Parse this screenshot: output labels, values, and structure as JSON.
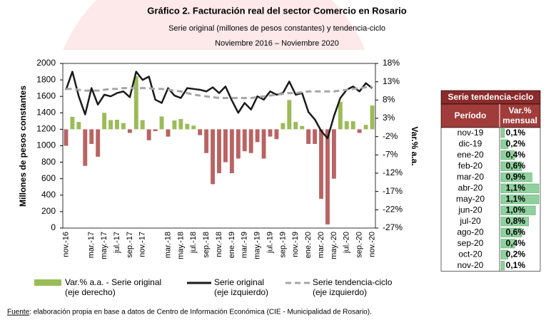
{
  "chart_data": {
    "type": "combo",
    "title": "Gráfico 2. Facturación real del sector Comercio en Rosario",
    "subtitle": "Serie original (millones de pesos constantes) y tendencia-ciclo",
    "subtitle2": "Noviembre 2016 – Noviembre 2020",
    "y_label": "Millones de pesos constantes",
    "y2_label": "Var.% a.a.",
    "categories": [
      "nov.-16",
      null,
      null,
      null,
      "mar.-17",
      null,
      "may.-17",
      null,
      "jul.-17",
      null,
      "sep.-17",
      null,
      "nov.-17",
      null,
      null,
      null,
      "mar.-18",
      null,
      "may.-18",
      null,
      "jul.-18",
      null,
      "sep.-18",
      null,
      "nov.-18",
      null,
      "ene.-19",
      null,
      "mar.-19",
      null,
      "may.-19",
      null,
      "jul.-19",
      null,
      "sep.-19",
      null,
      "nov.-19",
      null,
      "ene.-20",
      null,
      "mar.-20",
      null,
      "may.-20",
      null,
      "jul.-20",
      null,
      "sep.-20",
      null,
      "nov.-20"
    ],
    "ylim": [
      0,
      2000
    ],
    "yticks": [
      0,
      200,
      400,
      600,
      800,
      1000,
      1200,
      1400,
      1600,
      1800,
      2000
    ],
    "y2lim": [
      -27,
      18
    ],
    "y2ticks": [
      {
        "value": 18,
        "label": "18%"
      },
      {
        "value": 13,
        "label": "13%"
      },
      {
        "value": 8,
        "label": "8%"
      },
      {
        "value": 3,
        "label": "3%"
      },
      {
        "value": -2,
        "label": "-2%"
      },
      {
        "value": -7,
        "label": "-7%"
      },
      {
        "value": -12,
        "label": "-12%"
      },
      {
        "value": -17,
        "label": "-17%"
      },
      {
        "value": -22,
        "label": "-22%"
      },
      {
        "value": -27,
        "label": "-27%"
      }
    ],
    "series": [
      {
        "name": "Var.% a.a. - Serie original",
        "legend_note": "(eje derecho)",
        "type": "bar",
        "axis": "y2",
        "color": "#9bbb59",
        "negative_color": "#b86463",
        "values": [
          -4.5,
          3.4,
          2,
          -10,
          -4,
          -7.5,
          4.5,
          2.5,
          2.6,
          1.7,
          -1,
          14.5,
          2.5,
          -3,
          -0.5,
          3.5,
          -2,
          2.4,
          2.8,
          1.5,
          1,
          -1.6,
          -6.5,
          -15,
          -12,
          -9,
          -12,
          -8,
          -6,
          -6.5,
          -3.5,
          -8,
          -2,
          -2.7,
          1.7,
          8,
          2,
          0.9,
          -4,
          -4,
          -19,
          -26,
          -13.5,
          7.5,
          2.2,
          2.2,
          -1,
          1.2,
          6.5
        ]
      },
      {
        "name": "Serie original",
        "legend_note": "(eje izquierdo)",
        "type": "line",
        "color": "#1a1a1a",
        "dashed": false,
        "values": [
          1680,
          1900,
          1600,
          1380,
          1700,
          1500,
          1620,
          1600,
          1640,
          1660,
          1590,
          1900,
          1800,
          1840,
          1560,
          1520,
          1700,
          1610,
          1580,
          1700,
          1690,
          1680,
          1660,
          1710,
          1640,
          1720,
          1550,
          1400,
          1520,
          1440,
          1600,
          1560,
          1660,
          1620,
          1640,
          1780,
          1620,
          1640,
          1410,
          1320,
          1180,
          1090,
          1360,
          1580,
          1680,
          1720,
          1660,
          1760,
          1700
        ]
      },
      {
        "name": "Serie tendencia-ciclo",
        "legend_note": "(eje izquierdo)",
        "type": "line",
        "color": "#a6a6a6",
        "dashed": true,
        "values": [
          1690,
          1690,
          1680,
          1670,
          1670,
          1670,
          1680,
          1690,
          1690,
          1700,
          1700,
          1700,
          1700,
          1700,
          1690,
          1690,
          1680,
          1670,
          1660,
          1640,
          1620,
          1610,
          1600,
          1590,
          1580,
          1580,
          1580,
          1580,
          1580,
          1580,
          1590,
          1600,
          1610,
          1620,
          1630,
          1640,
          1640,
          1650,
          1660,
          1660,
          1660,
          1660,
          1660,
          1670,
          1680,
          1690,
          1700,
          1710,
          1720
        ]
      }
    ]
  },
  "table": {
    "title": "Serie tendencia-ciclo",
    "header": [
      "Período",
      "Var.%",
      "mensual"
    ],
    "bar_color": "#8fd19e",
    "periods": [
      "nov-19",
      "dic-19",
      "ene-20",
      "feb-20",
      "mar-20",
      "abr-20",
      "may-20",
      "jun-20",
      "jul-20",
      "ago-20",
      "sep-20",
      "oct-20",
      "nov-20"
    ],
    "values": [
      0.1,
      0.2,
      0.4,
      0.6,
      0.9,
      1.1,
      1.1,
      1.0,
      0.8,
      0.6,
      0.4,
      0.2,
      0.1
    ],
    "value_labels": [
      "0,1%",
      "0,2%",
      "0,4%",
      "0,6%",
      "0,9%",
      "1,1%",
      "1,1%",
      "1,0%",
      "0,8%",
      "0,6%",
      "0,4%",
      "0,2%",
      "0,1%"
    ]
  },
  "footnote": {
    "source_label": "Fuente",
    "source_text": ": elaboración propia en base a datos de Centro de Información Económica (CIE - Municipalidad de Rosario)."
  }
}
